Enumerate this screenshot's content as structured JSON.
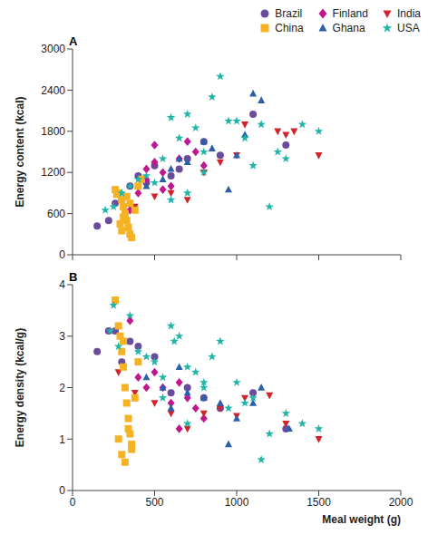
{
  "chart_data": [
    {
      "type": "scatter",
      "title": "A",
      "ylabel": "Energy content (kcal)",
      "xlim": [
        0,
        2000
      ],
      "xticks": [
        0,
        500,
        1000,
        1500,
        2000
      ],
      "ylim": [
        0,
        3000
      ],
      "yticks": [
        0,
        600,
        1200,
        1800,
        2400,
        3000
      ],
      "tick_labels": "y",
      "grid": false,
      "legend": "top",
      "series": [
        {
          "name": "Brazil",
          "color": "#6a4c9c",
          "marker": "circle",
          "x": [
            150,
            220,
            260,
            300,
            350,
            400,
            450,
            500,
            600,
            650,
            700,
            800,
            900,
            1100,
            1300
          ],
          "values": [
            420,
            500,
            750,
            800,
            1000,
            1150,
            1050,
            1300,
            1150,
            1250,
            1400,
            1650,
            1450,
            2050,
            1600
          ]
        },
        {
          "name": "Finland",
          "color": "#c0168e",
          "marker": "diamond",
          "x": [
            350,
            400,
            450,
            500,
            500,
            550,
            600,
            650,
            700,
            750,
            800,
            550,
            450
          ],
          "values": [
            650,
            900,
            1100,
            1600,
            1350,
            1200,
            1000,
            1400,
            1650,
            1500,
            1300,
            950,
            1250
          ]
        },
        {
          "name": "India",
          "color": "#d2232a",
          "marker": "triangle-down",
          "x": [
            380,
            500,
            600,
            700,
            800,
            900,
            1000,
            1050,
            1250,
            1300,
            1350,
            1500
          ],
          "values": [
            700,
            850,
            900,
            800,
            1200,
            1350,
            1450,
            1900,
            1800,
            1750,
            1800,
            1450
          ]
        },
        {
          "name": "China",
          "color": "#f5b324",
          "marker": "square",
          "x": [
            260,
            280,
            300,
            310,
            320,
            330,
            340,
            350,
            360,
            300,
            290,
            380,
            400,
            330,
            310,
            350,
            270,
            420
          ],
          "values": [
            950,
            900,
            800,
            700,
            600,
            500,
            400,
            300,
            250,
            350,
            450,
            650,
            1000,
            850,
            550,
            750,
            880,
            1100
          ]
        },
        {
          "name": "Ghana",
          "color": "#2b5fa8",
          "marker": "triangle",
          "x": [
            450,
            550,
            600,
            650,
            700,
            800,
            850,
            950,
            1000,
            1050,
            1100,
            1150
          ],
          "values": [
            1000,
            1100,
            1250,
            1400,
            1350,
            1650,
            1550,
            950,
            1450,
            1750,
            2350,
            2250
          ]
        },
        {
          "name": "USA",
          "color": "#1fb5a8",
          "marker": "star",
          "x": [
            200,
            250,
            300,
            350,
            400,
            450,
            500,
            550,
            600,
            650,
            700,
            750,
            800,
            850,
            900,
            950,
            1000,
            1050,
            1100,
            1150,
            1200,
            1250,
            1300,
            1400,
            1500,
            600,
            700,
            800
          ],
          "values": [
            650,
            700,
            900,
            1000,
            1100,
            1150,
            1050,
            1400,
            2000,
            1700,
            2050,
            1850,
            1500,
            2300,
            2600,
            1950,
            1950,
            1700,
            1300,
            1900,
            700,
            1500,
            1400,
            1900,
            1800,
            800,
            900,
            1200
          ]
        }
      ]
    },
    {
      "type": "scatter",
      "title": "B",
      "xlabel": "Meal weight (g)",
      "ylabel": "Energy density (kcal/g)",
      "xlim": [
        0,
        2000
      ],
      "xticks": [
        0,
        500,
        1000,
        1500,
        2000
      ],
      "ylim": [
        0,
        4
      ],
      "yticks": [
        0,
        1,
        2,
        3,
        4
      ],
      "grid": false,
      "series": [
        {
          "name": "Brazil",
          "color": "#6a4c9c",
          "marker": "circle",
          "x": [
            150,
            220,
            260,
            300,
            350,
            400,
            500,
            600,
            700,
            800,
            900,
            1100,
            1300
          ],
          "values": [
            2.7,
            3.1,
            3.1,
            2.5,
            2.9,
            2.8,
            2.6,
            1.9,
            2.0,
            1.8,
            1.6,
            1.9,
            1.2
          ]
        },
        {
          "name": "Finland",
          "color": "#c0168e",
          "marker": "diamond",
          "x": [
            350,
            400,
            450,
            500,
            550,
            600,
            650,
            700,
            750,
            800,
            650
          ],
          "values": [
            3.3,
            2.2,
            2.0,
            2.3,
            2.0,
            1.7,
            2.1,
            1.8,
            1.6,
            1.4,
            1.2
          ]
        },
        {
          "name": "India",
          "color": "#d2232a",
          "marker": "triangle-down",
          "x": [
            280,
            380,
            500,
            600,
            700,
            800,
            900,
            1000,
            1050,
            1200,
            1300,
            1500
          ],
          "values": [
            2.3,
            1.9,
            1.7,
            1.5,
            1.2,
            1.5,
            1.6,
            1.45,
            1.8,
            1.85,
            1.3,
            1.0
          ]
        },
        {
          "name": "China",
          "color": "#f5b324",
          "marker": "square",
          "x": [
            260,
            280,
            290,
            300,
            310,
            320,
            330,
            340,
            350,
            360,
            300,
            280,
            320,
            380,
            400,
            310,
            340,
            360
          ],
          "values": [
            3.7,
            3.2,
            3.0,
            2.7,
            2.4,
            2.0,
            1.7,
            1.4,
            1.1,
            0.9,
            0.7,
            1.0,
            0.55,
            1.8,
            2.5,
            2.9,
            1.2,
            0.8
          ]
        },
        {
          "name": "Ghana",
          "color": "#2b5fa8",
          "marker": "triangle",
          "x": [
            450,
            550,
            600,
            650,
            700,
            800,
            900,
            950,
            1000,
            1100,
            1150,
            1320
          ],
          "values": [
            2.2,
            2.0,
            1.6,
            2.4,
            1.9,
            1.8,
            1.7,
            0.9,
            1.4,
            1.7,
            2.0,
            1.2
          ]
        },
        {
          "name": "USA",
          "color": "#1fb5a8",
          "marker": "star",
          "x": [
            230,
            250,
            280,
            350,
            400,
            450,
            500,
            550,
            600,
            620,
            650,
            700,
            750,
            800,
            850,
            900,
            950,
            1000,
            1050,
            1100,
            1150,
            1200,
            1300,
            1400,
            1500,
            550,
            700,
            800
          ],
          "values": [
            3.1,
            3.6,
            2.8,
            3.4,
            2.7,
            2.6,
            2.5,
            2.2,
            3.2,
            2.9,
            3.0,
            2.4,
            2.3,
            2.0,
            2.6,
            2.9,
            1.6,
            2.1,
            1.7,
            1.8,
            0.6,
            1.1,
            1.5,
            1.3,
            1.2,
            1.8,
            1.3,
            2.1
          ]
        }
      ]
    }
  ]
}
